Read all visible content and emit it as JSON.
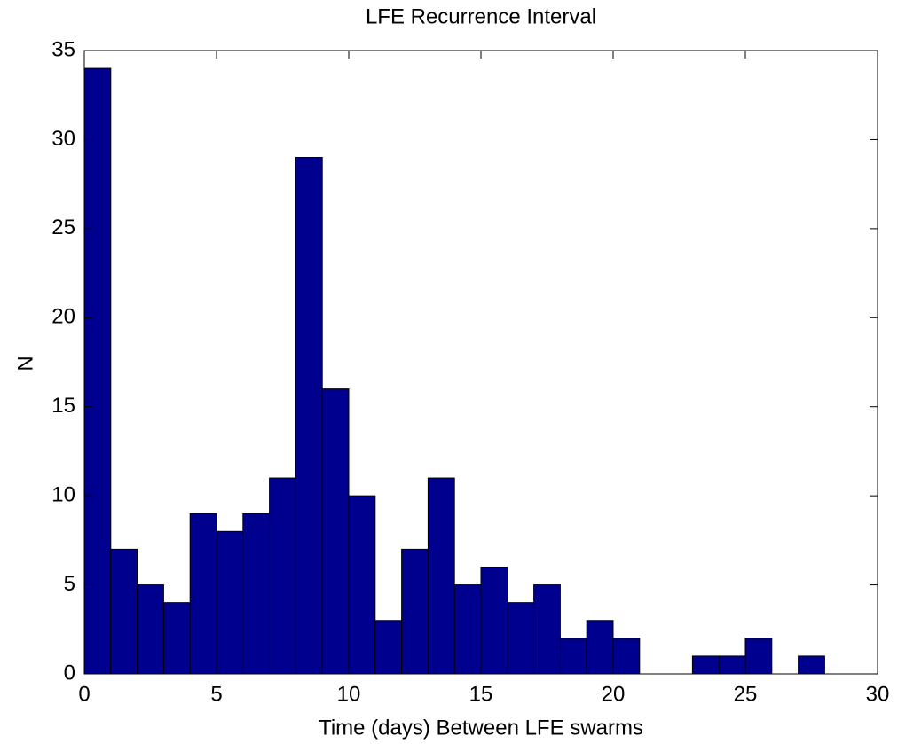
{
  "chart_data": {
    "type": "histogram",
    "title": "LFE Recurrence Interval",
    "xlabel": "Time (days) Between LFE swarms",
    "ylabel": "N",
    "bins": [
      0,
      1,
      2,
      3,
      4,
      5,
      6,
      7,
      8,
      9,
      10,
      11,
      12,
      13,
      14,
      15,
      16,
      17,
      18,
      19,
      20,
      21,
      22,
      23,
      24,
      25,
      26,
      27,
      28
    ],
    "values": [
      34,
      7,
      5,
      4,
      9,
      8,
      9,
      11,
      29,
      16,
      10,
      3,
      7,
      11,
      5,
      6,
      4,
      5,
      2,
      3,
      2,
      0,
      0,
      1,
      1,
      2,
      0,
      1
    ],
    "color": "#00008f",
    "xlim": [
      0,
      30
    ],
    "xticks": [
      0,
      5,
      10,
      15,
      20,
      25,
      30
    ],
    "ylim": [
      0,
      35
    ],
    "yticks": [
      0,
      5,
      10,
      15,
      20,
      25,
      30,
      35
    ]
  }
}
